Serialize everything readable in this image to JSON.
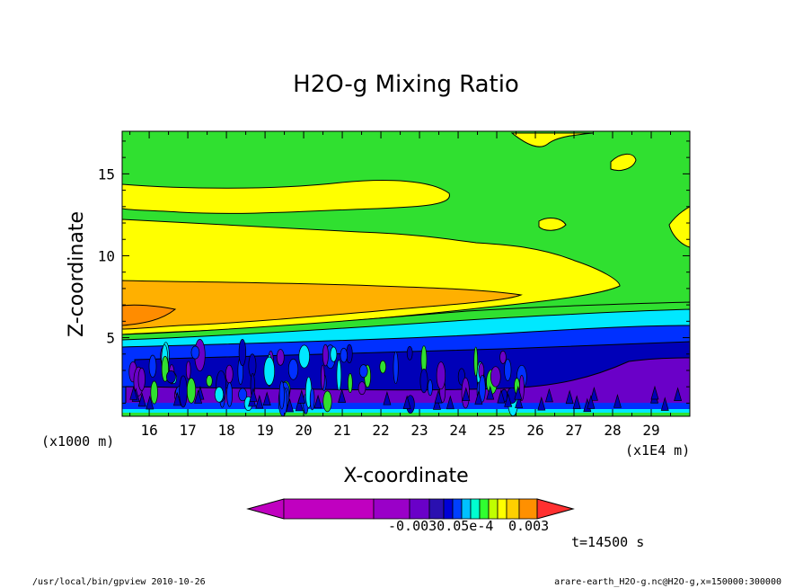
{
  "chart_data": {
    "type": "contour",
    "title": "H2O-g Mixing Ratio",
    "xlabel": "X-coordinate",
    "ylabel": "Z-coordinate",
    "x_unit": "(x1E4 m)",
    "y_unit": "(x1000 m)",
    "x_ticks": [
      "16",
      "17",
      "18",
      "19",
      "20",
      "21",
      "22",
      "23",
      "24",
      "25",
      "26",
      "27",
      "28",
      "29"
    ],
    "y_ticks": [
      "5",
      "10",
      "15"
    ],
    "xlim": [
      15.3,
      30.0
    ],
    "ylim": [
      0.2,
      17.6
    ],
    "colorbar_labels": [
      "-0.0030.05e-4",
      "0.003"
    ],
    "colorbar_colors": [
      "#c000c0",
      "#9a00c8",
      "#6a00c8",
      "#2a10b0",
      "#0000d8",
      "#0040ff",
      "#00c0ff",
      "#00ffd0",
      "#30ff30",
      "#c0ff00",
      "#ffff00",
      "#ffd000",
      "#ff9000",
      "#ff3030"
    ],
    "time_label": "t=14500 s",
    "bands": [
      {
        "name": "green-top",
        "color": "#30e030"
      },
      {
        "name": "yellow",
        "color": "#ffff00"
      },
      {
        "name": "orange",
        "color": "#ffb000"
      },
      {
        "name": "cyan",
        "color": "#00e8ff"
      },
      {
        "name": "blue",
        "color": "#0030ff"
      },
      {
        "name": "navy",
        "color": "#0000b8"
      },
      {
        "name": "purple",
        "color": "#6a00c8"
      }
    ]
  },
  "footer": {
    "left": "/usr/local/bin/gpview  2010-10-26",
    "right": "arare-earth_H2O-g.nc@H2O-g,x=150000:300000"
  }
}
